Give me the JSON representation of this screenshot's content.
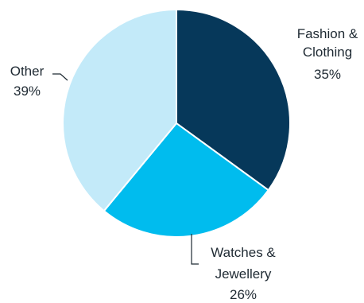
{
  "chart_data": {
    "type": "pie",
    "slices": [
      {
        "name": "Fashion & Clothing",
        "name_lines": [
          "Fashion &",
          "Clothing"
        ],
        "value": 35,
        "value_label": "35%",
        "color": "#06385a"
      },
      {
        "name": "Watches & Jewellery",
        "name_lines": [
          "Watches &",
          "Jewellery"
        ],
        "value": 26,
        "value_label": "26%",
        "color": "#00bcee"
      },
      {
        "name": "Other",
        "name_lines": [
          "Other"
        ],
        "value": 39,
        "value_label": "39%",
        "color": "#c3eaf9"
      }
    ],
    "start": "top",
    "direction": "clockwise",
    "legend": "none"
  }
}
